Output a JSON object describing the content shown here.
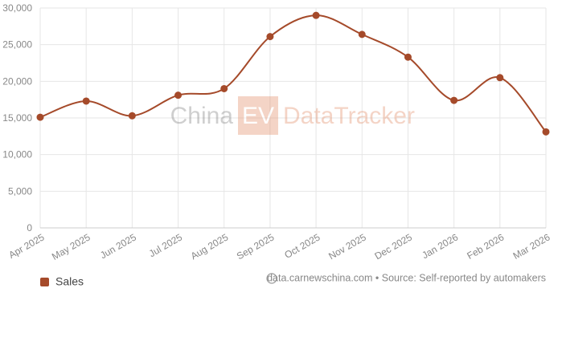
{
  "chart_data": {
    "type": "line",
    "categories": [
      "Apr 2025",
      "May 2025",
      "Jun 2025",
      "Jul 2025",
      "Aug 2025",
      "Sep 2025",
      "Oct 2025",
      "Nov 2025",
      "Dec 2025",
      "Jan 2026",
      "Feb 2026",
      "Mar 2026"
    ],
    "series": [
      {
        "name": "Sales",
        "color": "#a54a2a",
        "values": [
          15100,
          17300,
          15300,
          18100,
          19000,
          26100,
          29000,
          26400,
          23300,
          17400,
          20500,
          13100
        ]
      }
    ],
    "ylim": [
      0,
      30000
    ],
    "yticks": [
      0,
      {
        "value": 5000,
        "label": "5,000"
      },
      {
        "value": 10000,
        "label": "10,000"
      },
      {
        "value": 15000,
        "label": "15,000"
      },
      {
        "value": 20000,
        "label": "20,000"
      },
      {
        "value": 25000,
        "label": "25,000"
      },
      {
        "value": 30000,
        "label": "30,000"
      }
    ],
    "grid": true,
    "legend": "bottom-left",
    "watermark": {
      "left": "China",
      "badge": "EV",
      "right": "DataTracker"
    },
    "source": "data.carnewschina.com • Source: Self-reported by automakers"
  }
}
